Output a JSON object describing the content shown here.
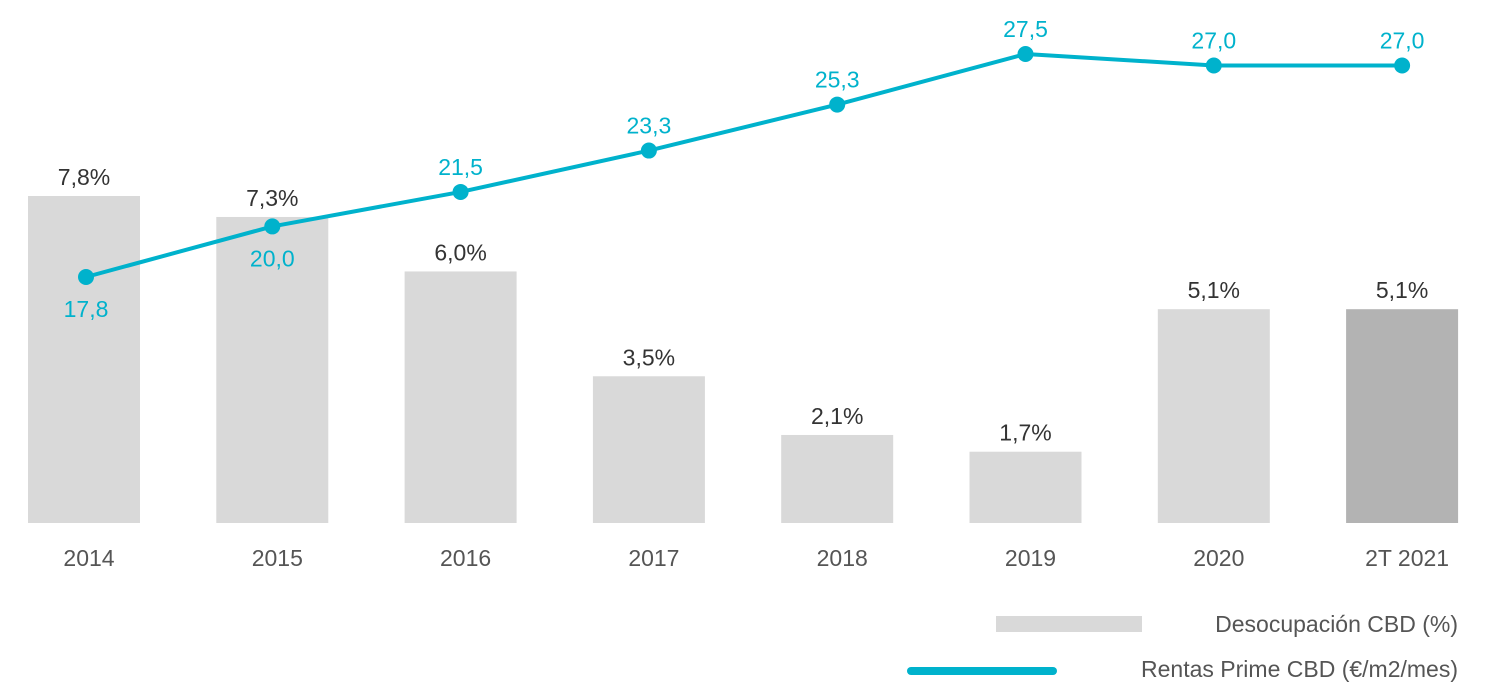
{
  "chart_data": {
    "type": "bar",
    "categories": [
      "2014",
      "2015",
      "2016",
      "2017",
      "2018",
      "2019",
      "2020",
      "2T 2021"
    ],
    "series": [
      {
        "name": "Desocupación CBD (%)",
        "type": "bar",
        "values": [
          7.8,
          7.3,
          6.0,
          3.5,
          2.1,
          1.7,
          5.1,
          5.1
        ],
        "labels": [
          "7,8%",
          "7,3%",
          "6,0%",
          "3,5%",
          "2,1%",
          "1,7%",
          "5,1%",
          "5,1%"
        ],
        "color": "#d9d9d9",
        "highlight_color": "#b3b3b3",
        "highlight_index": 7
      },
      {
        "name": "Rentas Prime CBD (€/m2/mes)",
        "type": "line",
        "values": [
          17.8,
          20.0,
          21.5,
          23.3,
          25.3,
          27.5,
          27.0,
          27.0
        ],
        "labels": [
          "17,8",
          "20,0",
          "21,5",
          "23,3",
          "25,3",
          "27,5",
          "27,0",
          "27,0"
        ],
        "color": "#00b2cc"
      }
    ],
    "ylim_bar": [
      0,
      7.8
    ],
    "ylim_line": [
      17.8,
      27.5
    ],
    "grid": false,
    "legend_position": "bottom-right"
  }
}
